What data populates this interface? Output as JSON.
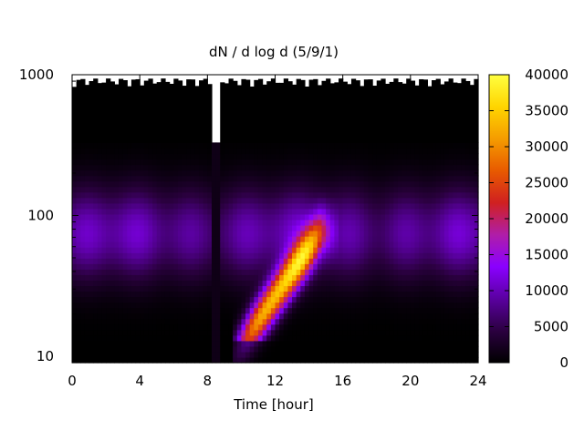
{
  "chart_data": {
    "type": "heatmap",
    "title": "dN / d log d (5/9/1)",
    "xlabel": "Time [hour]",
    "ylabel": "",
    "xlim": [
      0,
      24
    ],
    "ylim": [
      9,
      1000
    ],
    "y_scale": "log",
    "x_ticks": [
      "0",
      "4",
      "8",
      "12",
      "16",
      "20",
      "24"
    ],
    "y_ticks": [
      "10",
      "100",
      "1000"
    ],
    "colorbar": {
      "min": 0,
      "max": 40000,
      "ticks": [
        "0",
        "5000",
        "10000",
        "15000",
        "20000",
        "25000",
        "30000",
        "35000",
        "40000"
      ],
      "palette": [
        "#000000",
        "#2b0040",
        "#5a00a0",
        "#8a00ff",
        "#b01ea8",
        "#d02020",
        "#e85a00",
        "#f59c00",
        "#ffd500",
        "#ffff40"
      ]
    },
    "features": [
      {
        "label": "background mode",
        "x_range": [
          0,
          24
        ],
        "d_peak": 75,
        "value": 11000
      },
      {
        "label": "growth event",
        "x_range": [
          10,
          15.5
        ],
        "d_range": [
          10,
          70
        ],
        "value_max": 33000
      },
      {
        "label": "data gap",
        "x_range": [
          8.3,
          8.7
        ]
      }
    ],
    "grid": false,
    "legend": "colorbar-right"
  }
}
